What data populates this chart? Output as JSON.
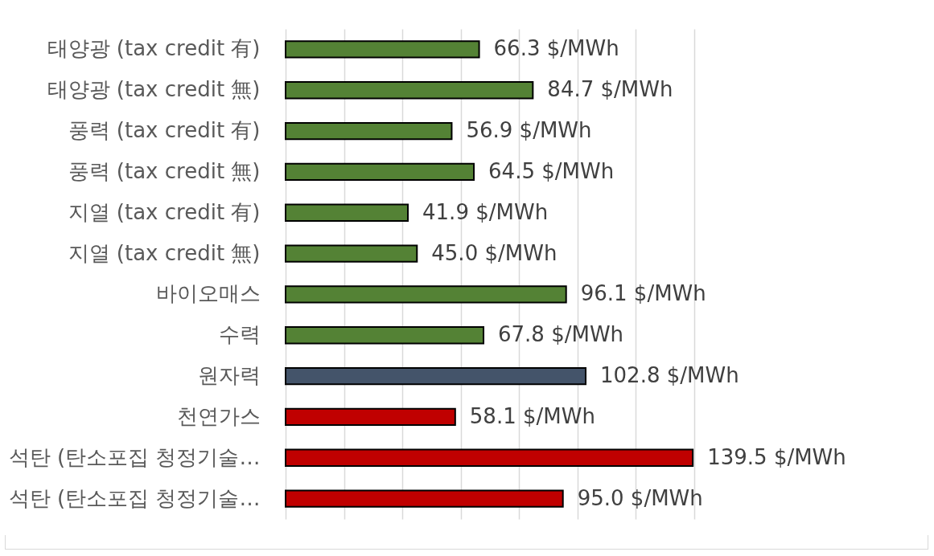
{
  "chart_data": {
    "type": "bar",
    "orientation": "horizontal",
    "categories": [
      "태양광 (tax credit 有)",
      "태양광 (tax credit 無)",
      "풍력 (tax credit 有)",
      "풍력 (tax credit 無)",
      "지열 (tax credit 有)",
      "지열 (tax credit 無)",
      "바이오매스",
      "수력",
      "원자력",
      "천연가스",
      "석탄 (탄소포집 청정기술…",
      "석탄 (탄소포집 청정기술…"
    ],
    "values": [
      66.3,
      84.7,
      56.9,
      64.5,
      41.9,
      45.0,
      96.1,
      67.8,
      102.8,
      58.1,
      139.5,
      95.0
    ],
    "colors": [
      "#548235",
      "#548235",
      "#548235",
      "#548235",
      "#548235",
      "#548235",
      "#548235",
      "#548235",
      "#44546a",
      "#c00000",
      "#c00000",
      "#c00000"
    ],
    "value_labels": [
      "66.3 $/MWh",
      "84.7 $/MWh",
      "56.9 $/MWh",
      "64.5 $/MWh",
      "41.9 $/MWh",
      "45.0 $/MWh",
      "96.1 $/MWh",
      "67.8 $/MWh",
      "102.8 $/MWh",
      "58.1 $/MWh",
      "139.5 $/MWh",
      "95.0 $/MWh"
    ],
    "xlim": [
      0,
      140
    ],
    "xticks": [
      {
        "value": 0,
        "label": null
      },
      {
        "value": 20,
        "label": null
      },
      {
        "value": 40,
        "label": null
      },
      {
        "value": 60,
        "label": null
      },
      {
        "value": 80,
        "label": null
      },
      {
        "value": 100,
        "label": null
      },
      {
        "value": 120,
        "label": null
      },
      {
        "value": 140,
        "label": null
      }
    ],
    "grid": "x",
    "tick_labels": "y"
  }
}
